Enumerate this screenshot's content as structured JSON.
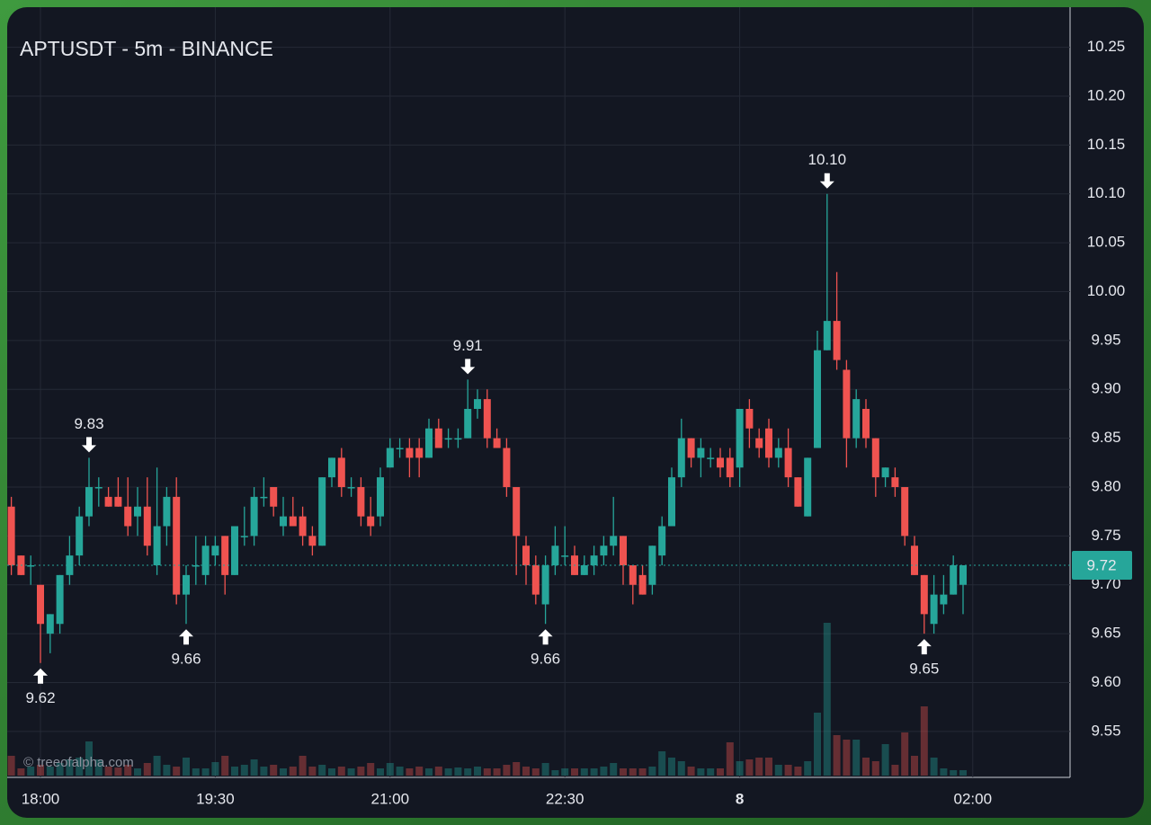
{
  "chart_data": {
    "type": "candlestick",
    "title": "APTUSDT - 5m - BINANCE",
    "watermark": "© treeofalpha.com",
    "categories": [
      null,
      null,
      null,
      "18:00",
      null,
      null,
      null,
      null,
      null,
      null,
      null,
      null,
      null,
      null,
      null,
      null,
      null,
      null,
      null,
      null,
      null,
      "19:30",
      null,
      null,
      null,
      null,
      null,
      null,
      null,
      null,
      null,
      null,
      null,
      null,
      null,
      null,
      null,
      null,
      null,
      "21:00",
      null,
      null,
      null,
      null,
      null,
      null,
      null,
      null,
      null,
      null,
      null,
      null,
      null,
      null,
      null,
      null,
      null,
      "22:30",
      null,
      null,
      null,
      null,
      null,
      null,
      null,
      null,
      null,
      null,
      null,
      null,
      null,
      null,
      null,
      null,
      null,
      "8",
      null,
      null,
      null,
      null,
      null,
      null,
      null,
      null,
      null,
      null,
      null,
      null,
      null,
      null,
      null,
      null,
      null,
      null,
      null,
      null,
      null,
      null,
      null,
      "02:00"
    ],
    "open": [
      9.78,
      9.73,
      9.72,
      9.7,
      9.65,
      9.66,
      9.71,
      9.73,
      9.77,
      9.8,
      9.79,
      9.79,
      9.78,
      9.77,
      9.78,
      9.72,
      9.76,
      9.79,
      9.69,
      9.72,
      9.71,
      9.73,
      9.75,
      9.71,
      9.75,
      9.75,
      9.79,
      9.8,
      9.76,
      9.77,
      9.77,
      9.75,
      9.74,
      9.81,
      9.83,
      9.8,
      9.8,
      9.77,
      9.77,
      9.82,
      9.84,
      9.84,
      9.84,
      9.83,
      9.86,
      9.85,
      9.85,
      9.85,
      9.88,
      9.89,
      9.85,
      9.84,
      9.8,
      9.74,
      9.72,
      9.68,
      9.72,
      9.73,
      9.73,
      9.71,
      9.72,
      9.73,
      9.74,
      9.75,
      9.72,
      9.71,
      9.7,
      9.73,
      9.76,
      9.81,
      9.85,
      9.83,
      9.83,
      9.83,
      9.83,
      9.82,
      9.88,
      9.85,
      9.86,
      9.83,
      9.84,
      9.81,
      9.77,
      9.84,
      9.94,
      9.97,
      9.92,
      9.85,
      9.88,
      9.85,
      9.81,
      9.81,
      9.8,
      9.74,
      9.71,
      9.66,
      9.68,
      9.69,
      9.7,
      null
    ],
    "high": [
      9.79,
      9.73,
      9.73,
      9.7,
      9.67,
      9.71,
      9.75,
      9.78,
      9.83,
      9.81,
      9.8,
      9.81,
      9.81,
      9.8,
      9.81,
      9.82,
      9.8,
      9.81,
      9.72,
      9.75,
      9.75,
      9.75,
      9.75,
      9.76,
      9.78,
      9.8,
      9.81,
      9.8,
      9.79,
      9.79,
      9.78,
      9.76,
      9.81,
      9.83,
      9.84,
      9.81,
      9.81,
      9.79,
      9.82,
      9.85,
      9.85,
      9.85,
      9.85,
      9.87,
      9.87,
      9.86,
      9.86,
      9.91,
      9.9,
      9.9,
      9.86,
      9.85,
      9.8,
      9.75,
      9.73,
      9.73,
      9.76,
      9.76,
      9.74,
      9.73,
      9.74,
      9.75,
      9.79,
      9.75,
      9.72,
      9.72,
      9.74,
      9.77,
      9.82,
      9.87,
      9.85,
      9.85,
      9.84,
      9.84,
      9.84,
      9.88,
      9.89,
      9.86,
      9.87,
      9.85,
      9.86,
      9.81,
      9.83,
      9.96,
      10.1,
      10.02,
      9.93,
      9.9,
      9.89,
      9.85,
      9.82,
      9.82,
      9.8,
      9.75,
      9.71,
      9.71,
      9.71,
      9.73,
      9.72,
      null
    ],
    "low": [
      9.71,
      9.71,
      9.7,
      9.62,
      9.63,
      9.65,
      9.7,
      9.72,
      9.76,
      9.78,
      9.78,
      9.78,
      9.75,
      9.75,
      9.73,
      9.71,
      9.74,
      9.68,
      9.66,
      9.7,
      9.7,
      9.72,
      9.69,
      9.71,
      9.74,
      9.74,
      9.78,
      9.77,
      9.75,
      9.76,
      9.74,
      9.73,
      9.74,
      9.8,
      9.79,
      9.79,
      9.76,
      9.75,
      9.76,
      9.82,
      9.83,
      9.81,
      9.81,
      9.83,
      9.84,
      9.84,
      9.84,
      9.85,
      9.87,
      9.84,
      9.84,
      9.79,
      9.71,
      9.7,
      9.68,
      9.66,
      9.71,
      9.72,
      9.71,
      9.71,
      9.71,
      9.72,
      9.73,
      9.7,
      9.68,
      9.69,
      9.69,
      9.72,
      9.76,
      9.8,
      9.82,
      9.81,
      9.82,
      9.81,
      9.8,
      9.8,
      9.84,
      9.83,
      9.82,
      9.82,
      9.8,
      9.78,
      9.77,
      9.84,
      9.94,
      9.92,
      9.82,
      9.84,
      9.84,
      9.79,
      9.8,
      9.79,
      9.74,
      9.71,
      9.65,
      9.65,
      9.67,
      9.69,
      9.67,
      null
    ],
    "close": [
      9.72,
      9.71,
      9.72,
      9.66,
      9.67,
      9.71,
      9.73,
      9.77,
      9.8,
      9.8,
      9.78,
      9.78,
      9.76,
      9.78,
      9.74,
      9.76,
      9.79,
      9.69,
      9.71,
      9.72,
      9.74,
      9.74,
      9.71,
      9.76,
      9.75,
      9.79,
      9.79,
      9.78,
      9.77,
      9.76,
      9.75,
      9.74,
      9.81,
      9.83,
      9.8,
      9.8,
      9.77,
      9.76,
      9.81,
      9.84,
      9.84,
      9.83,
      9.83,
      9.86,
      9.84,
      9.85,
      9.85,
      9.88,
      9.89,
      9.85,
      9.84,
      9.8,
      9.75,
      9.72,
      9.69,
      9.72,
      9.74,
      9.73,
      9.71,
      9.72,
      9.73,
      9.74,
      9.75,
      9.72,
      9.7,
      9.69,
      9.74,
      9.76,
      9.81,
      9.85,
      9.83,
      9.84,
      9.83,
      9.82,
      9.81,
      9.88,
      9.86,
      9.84,
      9.83,
      9.84,
      9.81,
      9.78,
      9.83,
      9.94,
      9.97,
      9.93,
      9.85,
      9.89,
      9.85,
      9.81,
      9.82,
      9.8,
      9.75,
      9.71,
      9.67,
      9.69,
      9.69,
      9.72,
      9.72,
      null
    ],
    "volume": [
      22,
      8,
      10,
      12,
      10,
      14,
      18,
      20,
      38,
      18,
      10,
      9,
      12,
      8,
      14,
      22,
      12,
      10,
      20,
      8,
      8,
      15,
      22,
      10,
      12,
      18,
      10,
      12,
      8,
      10,
      22,
      10,
      12,
      8,
      10,
      8,
      10,
      14,
      8,
      14,
      10,
      8,
      10,
      8,
      10,
      8,
      9,
      8,
      10,
      8,
      8,
      12,
      15,
      10,
      8,
      14,
      6,
      8,
      8,
      8,
      8,
      10,
      14,
      8,
      8,
      8,
      10,
      27,
      20,
      16,
      10,
      8,
      8,
      8,
      37,
      16,
      18,
      20,
      20,
      12,
      12,
      10,
      16,
      70,
      170,
      45,
      40,
      40,
      20,
      16,
      35,
      12,
      48,
      22,
      77,
      20,
      8,
      6,
      6,
      null
    ],
    "up_color": "#26a69a",
    "down_color": "#ef5350",
    "ylim": [
      9.503,
      10.291
    ],
    "yticks": [
      9.55,
      {
        "value": 9.6,
        "label": "9.60"
      },
      9.65,
      {
        "value": 9.7,
        "label": "9.70"
      },
      9.75,
      {
        "value": 9.8,
        "label": "9.80"
      },
      9.85,
      {
        "value": 9.9,
        "label": "9.90"
      },
      9.95,
      {
        "value": 10.0,
        "label": "10.00"
      },
      10.05,
      {
        "value": 10.1,
        "label": "10.10"
      },
      10.15,
      {
        "value": 10.2,
        "label": "10.20"
      },
      10.25
    ],
    "grid": true,
    "last_price": 9.72,
    "annotations": [
      {
        "value": 9.62,
        "label": "9.62"
      },
      {
        "value": 9.83,
        "label": "9.83"
      },
      {
        "value": 9.66,
        "label": "9.66"
      },
      {
        "value": 9.91,
        "label": "9.91"
      },
      {
        "value": 9.66,
        "label": "9.66"
      },
      {
        "value": 10.1,
        "label": "10.10"
      },
      {
        "value": 9.65,
        "label": "9.65"
      }
    ]
  }
}
